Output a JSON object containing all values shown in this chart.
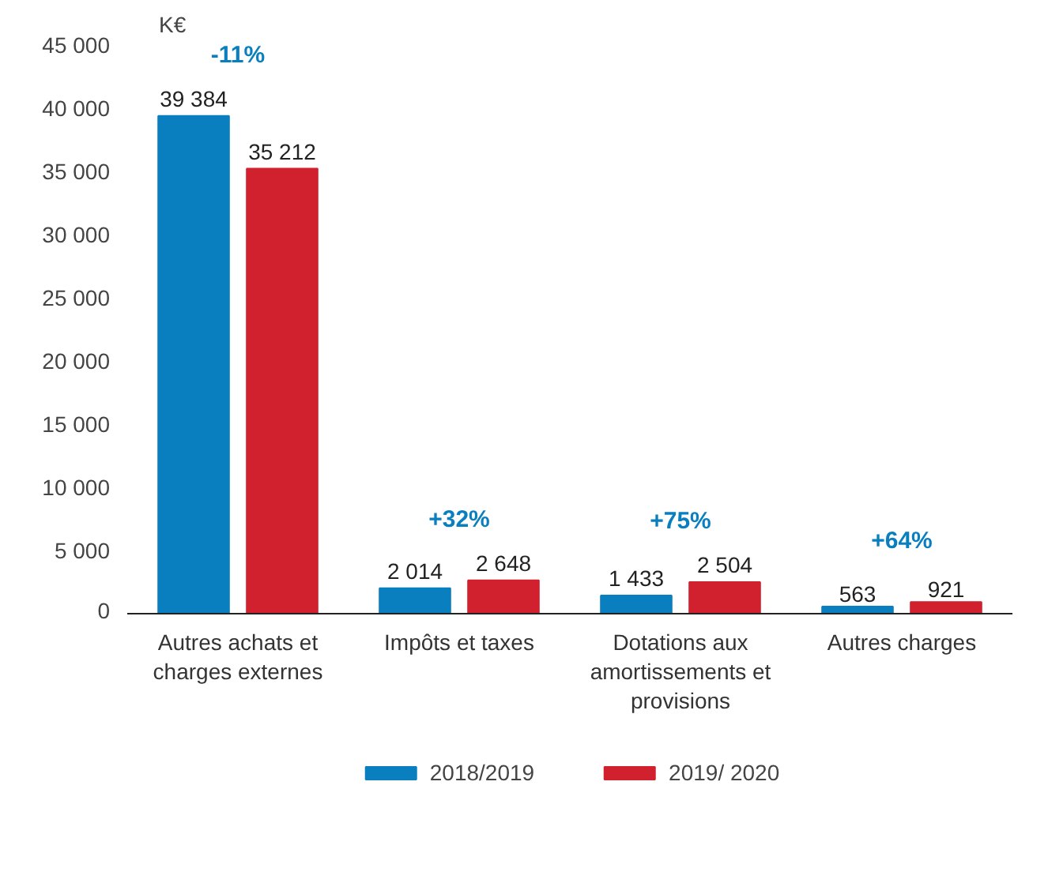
{
  "chart_data": {
    "type": "bar",
    "ylabel": "K€",
    "categories": [
      "Autres achats et charges externes",
      "Impôts et taxes",
      "Dotations aux amortissements et provisions",
      "Autres charges"
    ],
    "series": [
      {
        "name": "2018/2019",
        "color": "#0a7fbf",
        "values": [
          39384,
          2014,
          1433,
          563
        ],
        "value_labels": [
          "39 384",
          "2 014",
          "1 433",
          "563"
        ]
      },
      {
        "name": "2019/ 2020",
        "color": "#d1202e",
        "values": [
          35212,
          2648,
          2504,
          921
        ],
        "value_labels": [
          "35 212",
          "2 648",
          "2 504",
          "921"
        ]
      }
    ],
    "ylim": [
      0,
      45000
    ],
    "yticks": [
      {
        "value": 0,
        "label": "0"
      },
      {
        "value": 5000,
        "label": "5 000"
      },
      {
        "value": 10000,
        "label": "10 000"
      },
      {
        "value": 15000,
        "label": "15 000"
      },
      {
        "value": 20000,
        "label": "20 000"
      },
      {
        "value": 25000,
        "label": "25 000"
      },
      {
        "value": 30000,
        "label": "30 000"
      },
      {
        "value": 35000,
        "label": "35 000"
      },
      {
        "value": 40000,
        "label": "40 000"
      },
      {
        "value": 45000,
        "label": "45 000"
      }
    ],
    "annotations": [
      "-11%",
      "+32%",
      "+75%",
      "+64%"
    ],
    "grid": false,
    "legend": "bottom"
  }
}
